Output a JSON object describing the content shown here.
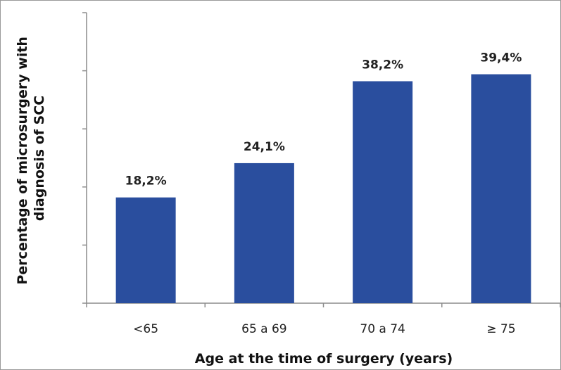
{
  "chart_data": {
    "type": "bar",
    "title": "",
    "xlabel": "Age at  the time of surgery  (years)",
    "ylabel_lines": [
      "Percentage of microsurgery with",
      "diagnosis of SCC"
    ],
    "categories": [
      "<65",
      "65 a 69",
      "70 a 74",
      "≥ 75"
    ],
    "values": [
      18.2,
      24.1,
      38.2,
      39.4
    ],
    "data_labels": [
      "18,2%",
      "24,1%",
      "38,2%",
      "39,4%"
    ],
    "ylim": [
      0,
      50
    ],
    "y_tick_count": 5,
    "y_tick_labels_shown": false,
    "grid": false,
    "legend": "none",
    "bar_color": "#2a4e9e",
    "axis_color": "#8c8c8c"
  }
}
